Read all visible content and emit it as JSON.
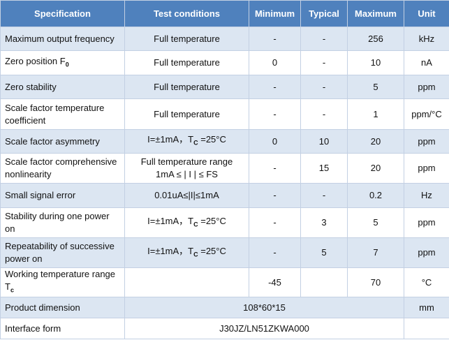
{
  "table": {
    "header": [
      "Specification",
      "Test conditions",
      "Minimum",
      "Typical",
      "Maximum",
      "Unit"
    ],
    "rows": [
      [
        "Maximum output frequency",
        "Full temperature",
        "-",
        "-",
        "256",
        "kHz"
      ],
      [
        {
          "text": "Zero position F",
          "sub": "0"
        },
        "Full temperature",
        "0",
        "-",
        "10",
        "nA"
      ],
      [
        "Zero stability",
        "Full temperature",
        "-",
        "-",
        "5",
        "ppm"
      ],
      [
        "Scale factor temperature coefficient",
        "Full temperature",
        "-",
        "-",
        "1",
        "ppm/°C"
      ],
      [
        "Scale factor asymmetry",
        {
          "text": "I=±1mA，T",
          "sub": "C",
          "tail": " =25°C"
        },
        "0",
        "10",
        "20",
        "ppm"
      ],
      [
        "Scale factor comprehensive nonlinearity",
        [
          "Full temperature range",
          "1mA ≤ | I | ≤ FS"
        ],
        "-",
        "15",
        "20",
        "ppm"
      ],
      [
        "Small signal error",
        "0.01uA≤|I|≤1mA",
        "-",
        "-",
        "0.2",
        "Hz"
      ],
      [
        "Stability during one power on",
        {
          "text": "I=±1mA，T",
          "sub": "C",
          "tail": " =25°C"
        },
        "-",
        "3",
        "5",
        "ppm"
      ],
      [
        "Repeatability of successive power on",
        {
          "text": "I=±1mA，T",
          "sub": "C",
          "tail": " =25°C"
        },
        "-",
        "5",
        "7",
        "ppm"
      ],
      [
        {
          "text": "Working temperature range T",
          "sub": "c"
        },
        "-45",
        "70",
        "°C"
      ],
      [
        "Product dimension",
        "108*60*15",
        "mm"
      ],
      [
        "Interface form",
        "J30JZ/LN51ZKWA000"
      ]
    ]
  }
}
